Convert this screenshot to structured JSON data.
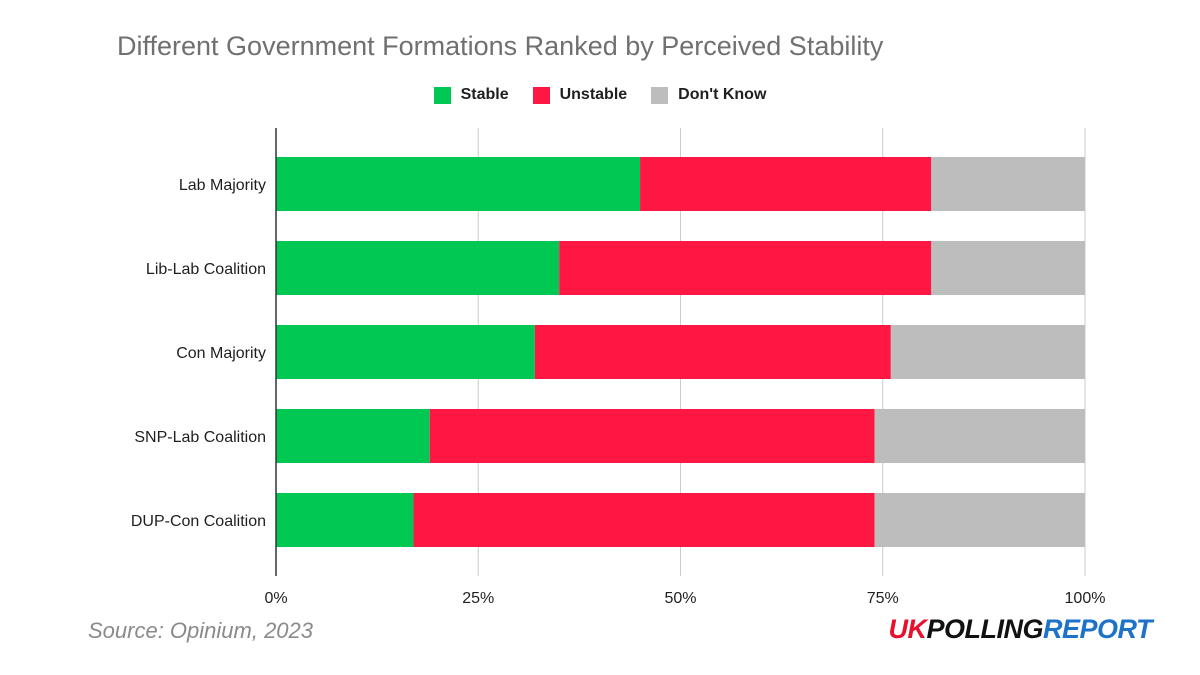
{
  "chart_data": {
    "type": "bar",
    "orientation": "horizontal",
    "stacked": true,
    "title": "Different Government Formations Ranked by Perceived Stability",
    "categories": [
      "Lab Majority",
      "Lib-Lab Coalition",
      "Con Majority",
      "SNP-Lab Coalition",
      "DUP-Con Coalition"
    ],
    "series": [
      {
        "name": "Stable",
        "color": "#00c853",
        "values": [
          45,
          35,
          32,
          19,
          17
        ]
      },
      {
        "name": "Unstable",
        "color": "#ff1744",
        "values": [
          36,
          46,
          44,
          55,
          57
        ]
      },
      {
        "name": "Don't Know",
        "color": "#bdbdbd",
        "values": [
          19,
          19,
          24,
          26,
          26
        ]
      }
    ],
    "xlim": [
      0,
      100
    ],
    "x_ticks": [
      "0%",
      "25%",
      "50%",
      "75%",
      "100%"
    ],
    "grid": true,
    "legend_position": "top"
  },
  "source": "Source: Opinium, 2023",
  "brand": {
    "uk": "UK",
    "polling": "POLLING",
    "report": "REPORT"
  }
}
